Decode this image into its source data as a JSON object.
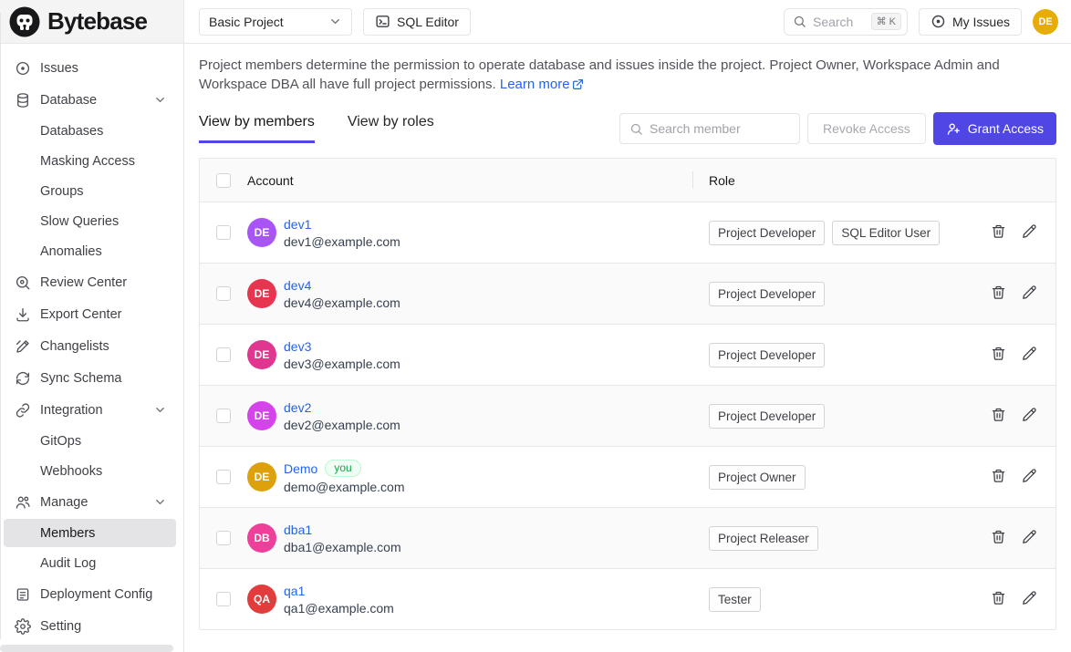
{
  "brand": {
    "name": "Bytebase"
  },
  "colors": {
    "accent": "#4f46e5",
    "link": "#2563eb",
    "topbar_avatar": "#e7ac08"
  },
  "topbar": {
    "project_select": "Basic Project",
    "sql_editor_label": "SQL Editor",
    "search_placeholder": "Search",
    "search_shortcut": "⌘ K",
    "my_issues_label": "My Issues",
    "avatar_initials": "DE"
  },
  "sidebar": {
    "items": [
      {
        "id": "issues",
        "label": "Issues",
        "icon": "issue-icon"
      },
      {
        "id": "database",
        "label": "Database",
        "icon": "database-icon",
        "chevron": true
      },
      {
        "id": "databases",
        "label": "Databases",
        "sub": true
      },
      {
        "id": "masking-access",
        "label": "Masking Access",
        "sub": true
      },
      {
        "id": "groups",
        "label": "Groups",
        "sub": true
      },
      {
        "id": "slow-queries",
        "label": "Slow Queries",
        "sub": true
      },
      {
        "id": "anomalies",
        "label": "Anomalies",
        "sub": true
      },
      {
        "id": "review-center",
        "label": "Review Center",
        "icon": "review-icon"
      },
      {
        "id": "export-center",
        "label": "Export Center",
        "icon": "export-icon"
      },
      {
        "id": "changelists",
        "label": "Changelists",
        "icon": "changelist-icon"
      },
      {
        "id": "sync-schema",
        "label": "Sync Schema",
        "icon": "sync-icon"
      },
      {
        "id": "integration",
        "label": "Integration",
        "icon": "link-icon",
        "chevron": true
      },
      {
        "id": "gitops",
        "label": "GitOps",
        "sub": true
      },
      {
        "id": "webhooks",
        "label": "Webhooks",
        "sub": true
      },
      {
        "id": "manage",
        "label": "Manage",
        "icon": "users-icon",
        "chevron": true
      },
      {
        "id": "members",
        "label": "Members",
        "sub": true,
        "active": true
      },
      {
        "id": "audit-log",
        "label": "Audit Log",
        "sub": true
      },
      {
        "id": "deployment-config",
        "label": "Deployment Config",
        "icon": "document-icon"
      },
      {
        "id": "setting",
        "label": "Setting",
        "icon": "gear-icon"
      }
    ]
  },
  "main": {
    "description": "Project members determine the permission to operate database and issues inside the project. Project Owner, Workspace Admin and Workspace DBA all have full project permissions.",
    "learn_more_label": "Learn more",
    "tabs": [
      {
        "label": "View by members",
        "active": true
      },
      {
        "label": "View by roles",
        "active": false
      }
    ],
    "member_search_placeholder": "Search member",
    "revoke_button_label": "Revoke Access",
    "grant_button_label": "Grant Access",
    "table": {
      "columns": {
        "account": "Account",
        "role": "Role"
      },
      "you_badge_label": "you",
      "rows": [
        {
          "initials": "DE",
          "avatar_color": "#a855f7",
          "name": "dev1",
          "email": "dev1@example.com",
          "roles": [
            "Project Developer",
            "SQL Editor User"
          ],
          "you": false
        },
        {
          "initials": "DE",
          "avatar_color": "#e8354f",
          "name": "dev4",
          "email": "dev4@example.com",
          "roles": [
            "Project Developer"
          ],
          "you": false
        },
        {
          "initials": "DE",
          "avatar_color": "#e0368f",
          "name": "dev3",
          "email": "dev3@example.com",
          "roles": [
            "Project Developer"
          ],
          "you": false
        },
        {
          "initials": "DE",
          "avatar_color": "#d543ea",
          "name": "dev2",
          "email": "dev2@example.com",
          "roles": [
            "Project Developer"
          ],
          "you": false
        },
        {
          "initials": "DE",
          "avatar_color": "#dda20b",
          "name": "Demo",
          "email": "demo@example.com",
          "roles": [
            "Project Owner"
          ],
          "you": true
        },
        {
          "initials": "DB",
          "avatar_color": "#ee3f9b",
          "name": "dba1",
          "email": "dba1@example.com",
          "roles": [
            "Project Releaser"
          ],
          "you": false
        },
        {
          "initials": "QA",
          "avatar_color": "#e23c3c",
          "name": "qa1",
          "email": "qa1@example.com",
          "roles": [
            "Tester"
          ],
          "you": false
        }
      ]
    }
  }
}
